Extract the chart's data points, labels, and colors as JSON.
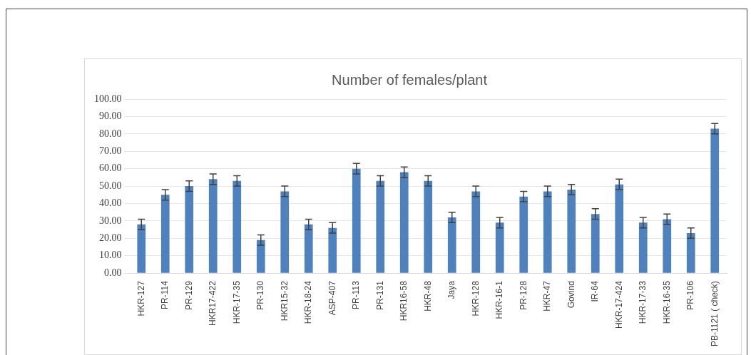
{
  "chart_data": {
    "type": "bar",
    "title": "Number of females/plant",
    "categories": [
      "HKR-127",
      "PR-114",
      "PR-129",
      "HKR17-422",
      "HKR-17-35",
      "PR-130",
      "HKR15-32",
      "HKR-18-24",
      "ASP-407",
      "PR-113",
      "PR-131",
      "HKR16-58",
      "HKR-48",
      "Jaya",
      "HKR-128",
      "HKR-16-1",
      "PR-128",
      "HKR-47",
      "Govind",
      "IR-64",
      "HKR-17-424",
      "HKR-17-33",
      "HKR-16-35",
      "PR-106",
      "PB-1121 ( check)"
    ],
    "values": [
      28,
      45,
      50,
      54,
      53,
      19,
      47,
      28,
      26,
      60,
      53,
      58,
      53,
      32,
      47,
      29,
      44,
      47,
      48,
      34,
      51,
      29,
      31,
      23,
      83
    ],
    "errors": [
      3,
      3,
      3,
      3,
      3,
      3,
      3,
      3,
      3,
      3,
      3,
      3,
      3,
      3,
      3,
      3,
      3,
      3,
      3,
      3,
      3,
      3,
      3,
      3,
      3
    ],
    "color": "#4f81bd",
    "ylim": [
      0,
      100
    ],
    "yticks": [
      {
        "value": 0,
        "label": "0.00"
      },
      {
        "value": 10,
        "label": "10.00"
      },
      {
        "value": 20,
        "label": "20.00"
      },
      {
        "value": 30,
        "label": "30.00"
      },
      {
        "value": 40,
        "label": "40.00"
      },
      {
        "value": 50,
        "label": "50.00"
      },
      {
        "value": 60,
        "label": "60.00"
      },
      {
        "value": 70,
        "label": "70.00"
      },
      {
        "value": 80,
        "label": "80.00"
      },
      {
        "value": 90,
        "label": "90.00"
      },
      {
        "value": 100,
        "label": "100.00"
      }
    ],
    "grid": "y",
    "legend": false
  }
}
